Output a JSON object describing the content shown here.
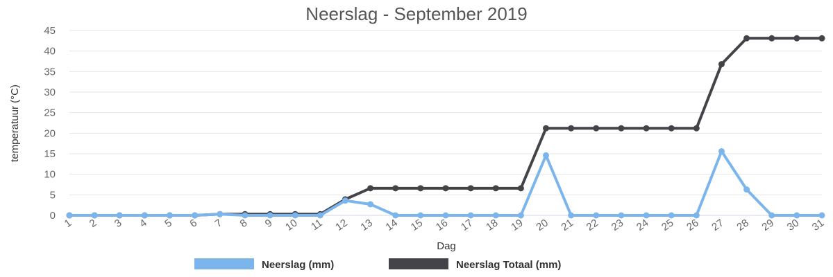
{
  "chart_data": {
    "type": "line",
    "title": "Neerslag - September 2019",
    "xlabel": "Dag",
    "ylabel": "temperatuur (°C)",
    "ylim": [
      0,
      45
    ],
    "yticks": [
      "0",
      "5",
      "10",
      "15",
      "20",
      "25",
      "30",
      "35",
      "40",
      "45"
    ],
    "grid": true,
    "legend_position": "bottom",
    "categories": [
      "1",
      "2",
      "3",
      "4",
      "5",
      "6",
      "7",
      "8",
      "9",
      "10",
      "11",
      "12",
      "13",
      "14",
      "15",
      "16",
      "17",
      "18",
      "19",
      "20",
      "21",
      "22",
      "23",
      "24",
      "25",
      "26",
      "27",
      "28",
      "29",
      "30",
      "31"
    ],
    "series": [
      {
        "name": "Neerslag (mm)",
        "color": "#7cb5ec",
        "values": [
          0,
          0,
          0,
          0,
          0,
          0,
          0.3,
          0,
          0,
          0,
          0,
          3.6,
          2.7,
          0,
          0,
          0,
          0,
          0,
          0,
          14.6,
          0,
          0,
          0,
          0,
          0,
          0,
          15.6,
          6.3,
          0,
          0,
          0
        ]
      },
      {
        "name": "Neerslag Totaal (mm)",
        "color": "#434348",
        "values": [
          0,
          0,
          0,
          0,
          0,
          0,
          0.3,
          0.3,
          0.3,
          0.3,
          0.3,
          3.9,
          6.6,
          6.6,
          6.6,
          6.6,
          6.6,
          6.6,
          6.6,
          21.2,
          21.2,
          21.2,
          21.2,
          21.2,
          21.2,
          21.2,
          36.8,
          43.1,
          43.1,
          43.1,
          43.1
        ]
      }
    ]
  }
}
